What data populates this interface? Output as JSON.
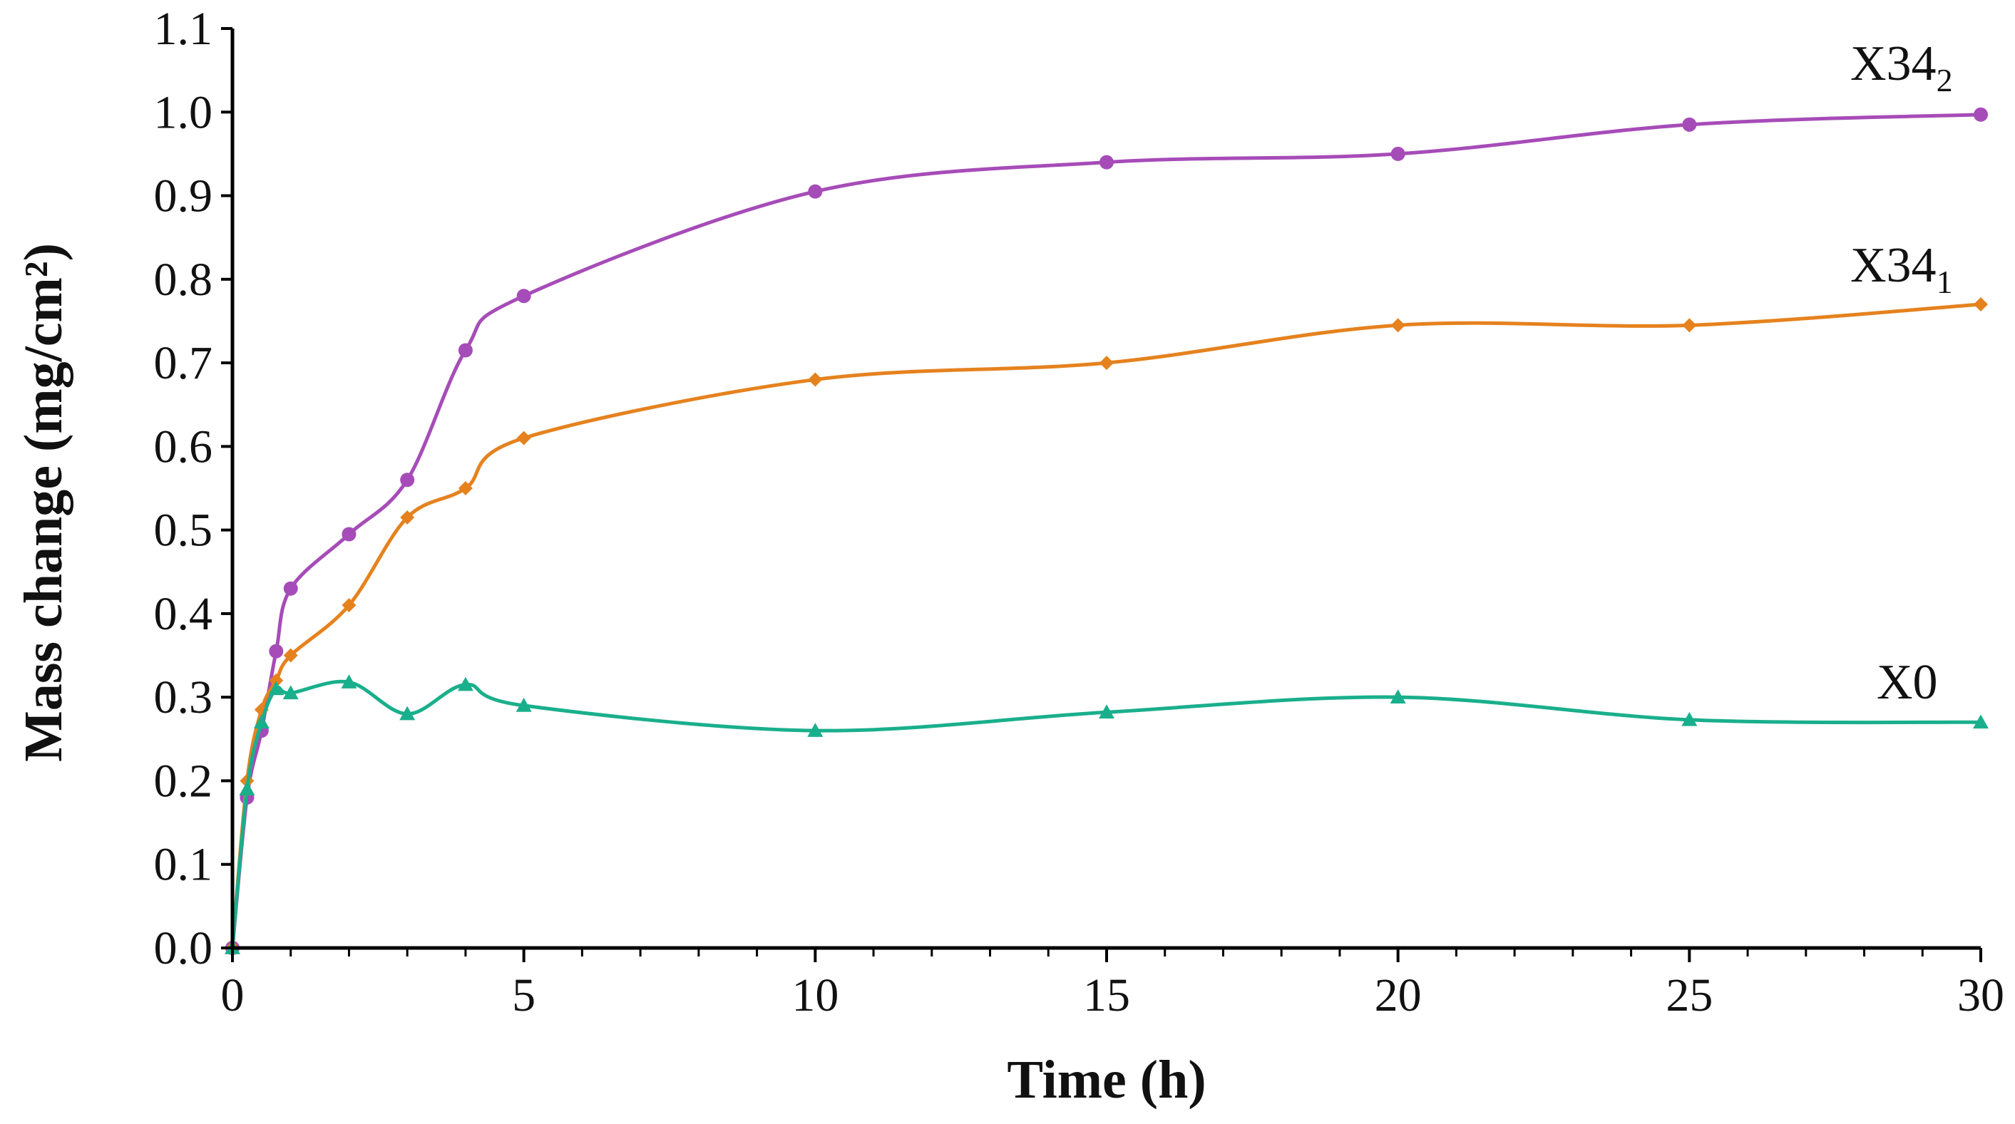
{
  "chart_data": {
    "type": "line",
    "title": "",
    "xlabel": "Time (h)",
    "ylabel": "Mass change (mg/cm²)",
    "xlim": [
      0,
      30
    ],
    "ylim": [
      0,
      1.1
    ],
    "x_major_ticks": [
      0,
      5,
      10,
      15,
      20,
      25,
      30
    ],
    "x_tick_labels": [
      "0",
      "5",
      "10",
      "15",
      "20",
      "25",
      "30"
    ],
    "x_minor_tick_step": 1,
    "y_ticks": [
      0,
      0.1,
      0.2,
      0.3,
      0.4,
      0.5,
      0.6,
      0.7,
      0.8,
      0.9,
      1.0,
      1.1
    ],
    "y_tick_labels": [
      "0.0",
      "0.1",
      "0.2",
      "0.3",
      "0.4",
      "0.5",
      "0.6",
      "0.7",
      "0.8",
      "0.9",
      "1.0",
      "1.1"
    ],
    "grid": false,
    "legend": "inline labels at right end of each series",
    "series": [
      {
        "name": "X34_2",
        "label_main": "X34",
        "label_sub": "2",
        "color": "#A64CB8",
        "marker": "circle",
        "x": [
          0,
          0.25,
          0.5,
          0.75,
          1,
          2,
          3,
          4,
          5,
          10,
          15,
          20,
          25,
          30
        ],
        "y": [
          0,
          0.18,
          0.26,
          0.355,
          0.43,
          0.495,
          0.56,
          0.715,
          0.78,
          0.905,
          0.94,
          0.95,
          0.985,
          0.997
        ]
      },
      {
        "name": "X34_1",
        "label_main": "X34",
        "label_sub": "1",
        "color": "#E5821E",
        "marker": "diamond",
        "x": [
          0,
          0.25,
          0.5,
          0.75,
          1,
          2,
          3,
          4,
          5,
          10,
          15,
          20,
          25,
          30
        ],
        "y": [
          0,
          0.2,
          0.285,
          0.32,
          0.35,
          0.41,
          0.515,
          0.55,
          0.61,
          0.68,
          0.7,
          0.745,
          0.745,
          0.77
        ]
      },
      {
        "name": "X0",
        "label_main": "X0",
        "label_sub": "",
        "color": "#1AAF8C",
        "marker": "triangle",
        "x": [
          0,
          0.25,
          0.5,
          0.75,
          1,
          2,
          3,
          4,
          5,
          10,
          15,
          20,
          25,
          30
        ],
        "y": [
          0,
          0.19,
          0.27,
          0.31,
          0.305,
          0.318,
          0.28,
          0.315,
          0.29,
          0.26,
          0.282,
          0.3,
          0.273,
          0.27
        ]
      }
    ]
  }
}
